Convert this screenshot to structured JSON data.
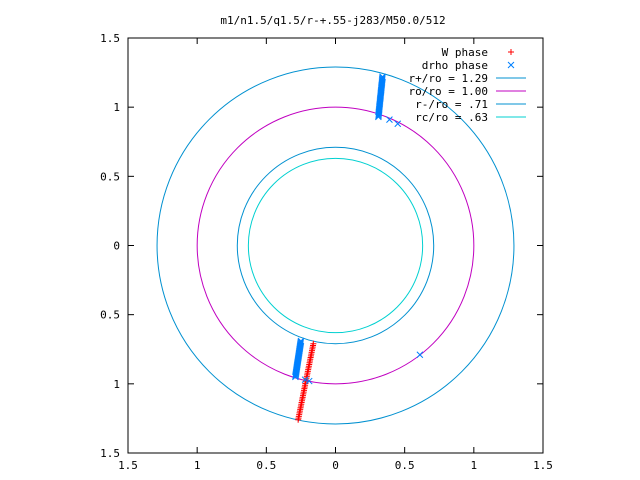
{
  "chart_data": {
    "type": "scatter",
    "title": "m1/n1.5/q1.5/r-+.55-j283/M50.0/512",
    "xlim": [
      -1.5,
      1.5
    ],
    "ylim": [
      -1.5,
      1.5
    ],
    "xticks": [
      -1.5,
      -1,
      -0.5,
      0,
      0.5,
      1,
      1.5
    ],
    "yticks": [
      -1.5,
      -1,
      -0.5,
      0,
      0.5,
      1,
      1.5
    ],
    "xtick_labels": [
      "1.5",
      "1",
      "0.5",
      "0",
      "0.5",
      "1",
      "1.5"
    ],
    "ytick_labels": [
      "1.5",
      "1",
      "0.5",
      "0",
      "0.5",
      "1",
      "1.5"
    ],
    "grid": false,
    "legend_position": "top-right",
    "legend": [
      {
        "label": "W phase",
        "marker": "+",
        "color": "#ff0000"
      },
      {
        "label": "drho phase",
        "marker": "x",
        "color": "#0080ff"
      },
      {
        "label": "r+/ro = 1.29",
        "line": true,
        "color": "#0090d0"
      },
      {
        "label": "ro/ro = 1.00",
        "line": true,
        "color": "#c000c0"
      },
      {
        "label": "r-/ro = .71",
        "line": true,
        "color": "#0090d0"
      },
      {
        "label": "rc/ro = .63",
        "line": true,
        "color": "#00d0d0"
      }
    ],
    "circles": [
      {
        "name": "r+/ro = 1.29",
        "r": 1.29,
        "color": "#0090d0"
      },
      {
        "name": "ro/ro = 1.00",
        "r": 1.0,
        "color": "#c000c0"
      },
      {
        "name": "r-/ro = .71",
        "r": 0.71,
        "color": "#0090d0"
      },
      {
        "name": "rc/ro = .63",
        "r": 0.63,
        "color": "#00d0d0"
      }
    ],
    "series": [
      {
        "name": "W phase",
        "marker": "+",
        "color": "#ff0000",
        "segments": [
          {
            "x0": -0.27,
            "y0": -1.26,
            "x1": -0.16,
            "y1": -0.71,
            "n": 45
          }
        ]
      },
      {
        "name": "drho phase",
        "marker": "x",
        "color": "#0080ff",
        "segments": [
          {
            "x0": 0.34,
            "y0": 1.22,
            "x1": 0.31,
            "y1": 0.93,
            "n": 35
          },
          {
            "x0": -0.25,
            "y0": -0.69,
            "x1": -0.29,
            "y1": -0.95,
            "n": 35
          }
        ],
        "points": [
          {
            "x": 0.45,
            "y": 0.88
          },
          {
            "x": 0.39,
            "y": 0.91
          },
          {
            "x": -0.19,
            "y": -0.98
          },
          {
            "x": -0.22,
            "y": -0.97
          },
          {
            "x": 0.61,
            "y": -0.79
          }
        ]
      }
    ]
  }
}
